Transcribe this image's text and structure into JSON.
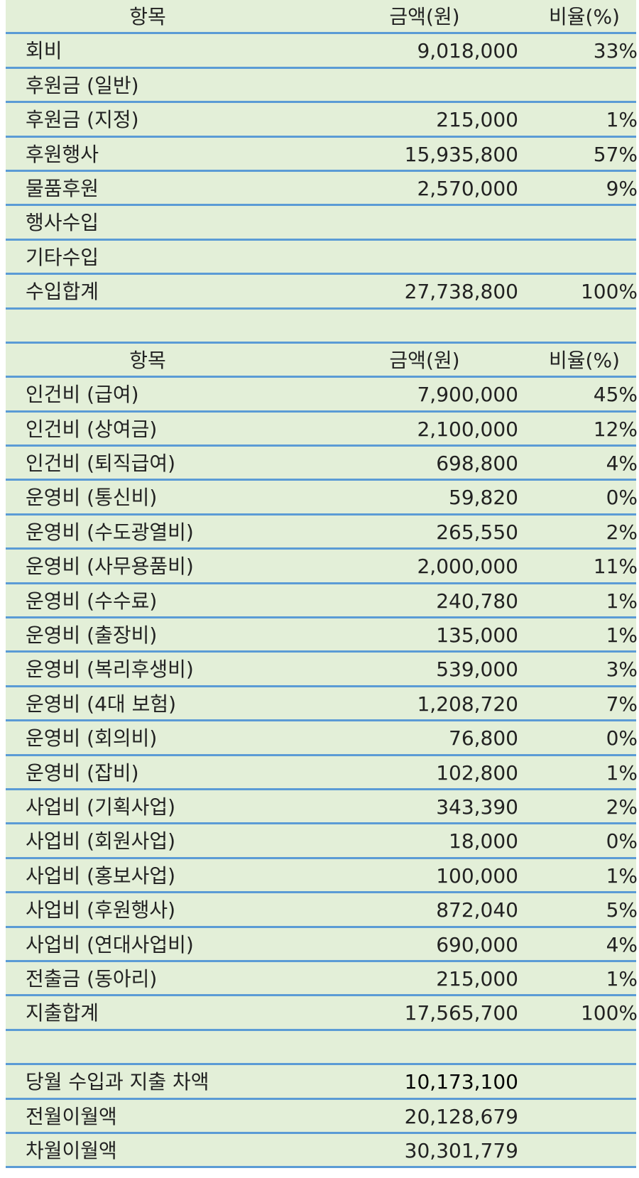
{
  "income": {
    "header": {
      "item": "항목",
      "amount": "금액(원)",
      "ratio": "비율(%)"
    },
    "rows": [
      {
        "item": "회비",
        "amount": "9,018,000",
        "ratio": "33%"
      },
      {
        "item": "후원금 (일반)",
        "amount": "",
        "ratio": ""
      },
      {
        "item": "후원금 (지정)",
        "amount": "215,000",
        "ratio": "1%"
      },
      {
        "item": "후원행사",
        "amount": "15,935,800",
        "ratio": "57%"
      },
      {
        "item": "물품후원",
        "amount": "2,570,000",
        "ratio": "9%"
      },
      {
        "item": "행사수입",
        "amount": "",
        "ratio": ""
      },
      {
        "item": "기타수입",
        "amount": "",
        "ratio": ""
      },
      {
        "item": "수입합계",
        "amount": "27,738,800",
        "ratio": "100%"
      }
    ]
  },
  "expense": {
    "header": {
      "item": "항목",
      "amount": "금액(원)",
      "ratio": "비율(%)"
    },
    "rows": [
      {
        "item": "인건비 (급여)",
        "amount": "7,900,000",
        "ratio": "45%"
      },
      {
        "item": "인건비 (상여금)",
        "amount": "2,100,000",
        "ratio": "12%"
      },
      {
        "item": "인건비 (퇴직급여)",
        "amount": "698,800",
        "ratio": "4%"
      },
      {
        "item": "운영비 (통신비)",
        "amount": "59,820",
        "ratio": "0%"
      },
      {
        "item": "운영비 (수도광열비)",
        "amount": "265,550",
        "ratio": "2%"
      },
      {
        "item": "운영비 (사무용품비)",
        "amount": "2,000,000",
        "ratio": "11%"
      },
      {
        "item": "운영비 (수수료)",
        "amount": "240,780",
        "ratio": "1%"
      },
      {
        "item": "운영비 (출장비)",
        "amount": "135,000",
        "ratio": "1%"
      },
      {
        "item": "운영비 (복리후생비)",
        "amount": "539,000",
        "ratio": "3%"
      },
      {
        "item": "운영비 (4대 보험)",
        "amount": "1,208,720",
        "ratio": "7%"
      },
      {
        "item": "운영비 (회의비)",
        "amount": "76,800",
        "ratio": "0%"
      },
      {
        "item": "운영비 (잡비)",
        "amount": "102,800",
        "ratio": "1%"
      },
      {
        "item": "사업비 (기획사업)",
        "amount": "343,390",
        "ratio": "2%"
      },
      {
        "item": "사업비 (회원사업)",
        "amount": "18,000",
        "ratio": "0%"
      },
      {
        "item": "사업비 (홍보사업)",
        "amount": "100,000",
        "ratio": "1%"
      },
      {
        "item": "사업비 (후원행사)",
        "amount": "872,040",
        "ratio": "5%"
      },
      {
        "item": "사업비 (연대사업비)",
        "amount": "690,000",
        "ratio": "4%"
      },
      {
        "item": "전출금 (동아리)",
        "amount": "215,000",
        "ratio": "1%"
      },
      {
        "item": "지출합계",
        "amount": "17,565,700",
        "ratio": "100%"
      }
    ]
  },
  "balance": {
    "rows": [
      {
        "item": "당월 수입과 지출 차액",
        "amount": "10,173,100"
      },
      {
        "item": "전월이월액",
        "amount": "20,128,679"
      },
      {
        "item": "차월이월액",
        "amount": "30,301,779"
      }
    ]
  },
  "colors": {
    "row_fill": "#e3efd8",
    "row_rule": "#5b9bd5"
  }
}
